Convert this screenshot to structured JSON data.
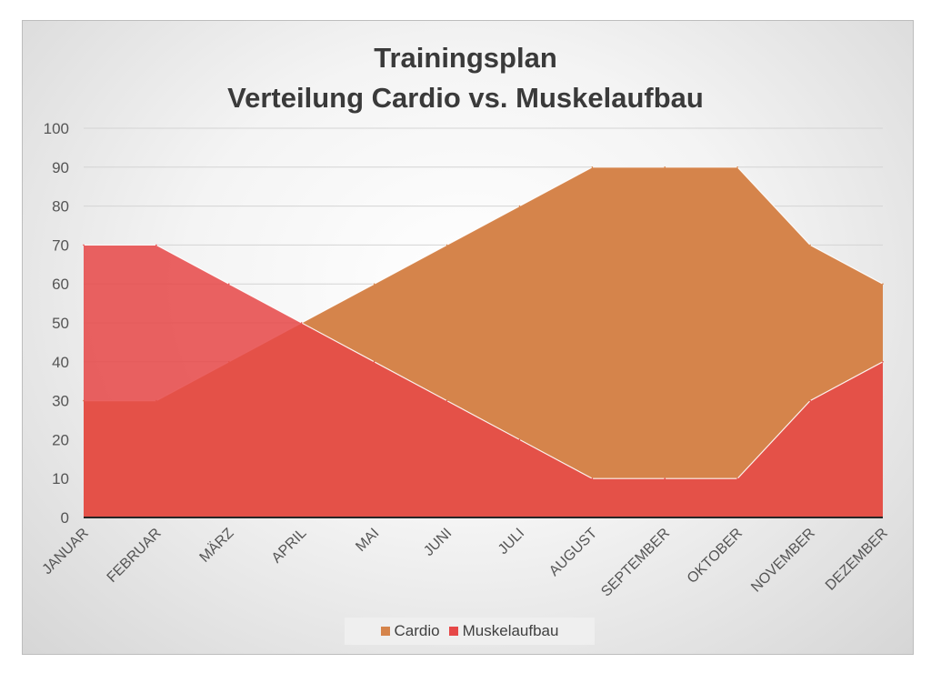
{
  "chart_data": {
    "type": "area",
    "title": [
      "Trainingsplan",
      "Verteilung Cardio vs. Muskelaufbau"
    ],
    "categories": [
      "JANUAR",
      "FEBRUAR",
      "MÄRZ",
      "APRIL",
      "MAI",
      "JUNI",
      "JULI",
      "AUGUST",
      "SEPTEMBER",
      "OKTOBER",
      "NOVEMBER",
      "DEZEMBER"
    ],
    "series": [
      {
        "name": "Cardio",
        "color": "#D5844B",
        "values": [
          30,
          30,
          40,
          50,
          60,
          70,
          80,
          90,
          90,
          90,
          70,
          60
        ]
      },
      {
        "name": "Muskelaufbau",
        "color": "#E64848",
        "values": [
          70,
          70,
          60,
          50,
          40,
          30,
          20,
          10,
          10,
          10,
          30,
          40
        ]
      }
    ],
    "ylim": [
      0,
      100
    ],
    "yticks": [
      0,
      10,
      20,
      30,
      40,
      50,
      60,
      70,
      80,
      90,
      100
    ],
    "grid": true,
    "legend_position": "bottom",
    "xlabel": "",
    "ylabel": ""
  }
}
